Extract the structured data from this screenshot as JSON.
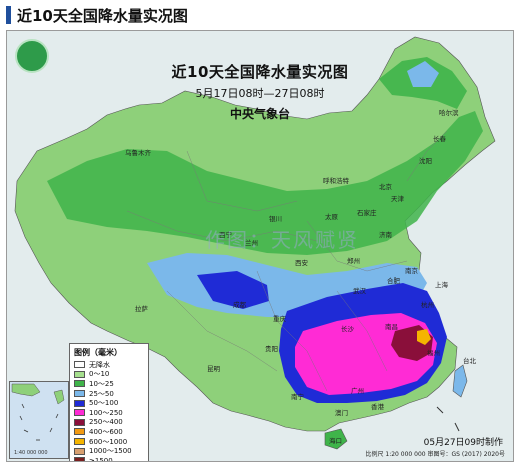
{
  "page_title": "近10天全国降水量实况图",
  "map": {
    "title": "近10天全国降水量实况图",
    "period": "5月17日08时—27日08时",
    "agency": "中央气象台",
    "watermark": "作图：天风赋贤",
    "issue_time": "05月27日09时制作",
    "scale_note": "比例尺 1:20 000 000  审图号：GS (2017) 2020号",
    "inset_scale": "1:40 000 000"
  },
  "legend": {
    "title": "图例（毫米）",
    "items": [
      {
        "label": "无降水",
        "color": "#ffffff"
      },
      {
        "label": "0～10",
        "color": "#a6e08e"
      },
      {
        "label": "10～25",
        "color": "#3fb44a"
      },
      {
        "label": "25～50",
        "color": "#7bb8ea"
      },
      {
        "label": "50～100",
        "color": "#1f2bd6"
      },
      {
        "label": "100～250",
        "color": "#ff2bd5"
      },
      {
        "label": "250～400",
        "color": "#8a0f3a"
      },
      {
        "label": "400～600",
        "color": "#f29a12"
      },
      {
        "label": "600～1000",
        "color": "#f5b400"
      },
      {
        "label": "1000～1500",
        "color": "#d8a070"
      },
      {
        "label": "≥1500",
        "color": "#7a1f1f"
      }
    ]
  },
  "cities": [
    "乌鲁木齐",
    "哈尔滨",
    "长春",
    "沈阳",
    "北京",
    "天津",
    "石家庄",
    "太原",
    "济南",
    "呼和浩特",
    "银川",
    "西宁",
    "兰州",
    "西安",
    "郑州",
    "合肥",
    "南京",
    "上海",
    "武汉",
    "杭州",
    "拉萨",
    "成都",
    "重庆",
    "贵阳",
    "长沙",
    "南昌",
    "福州",
    "台北",
    "昆明",
    "南宁",
    "广州",
    "香港",
    "澳门",
    "海口"
  ]
}
